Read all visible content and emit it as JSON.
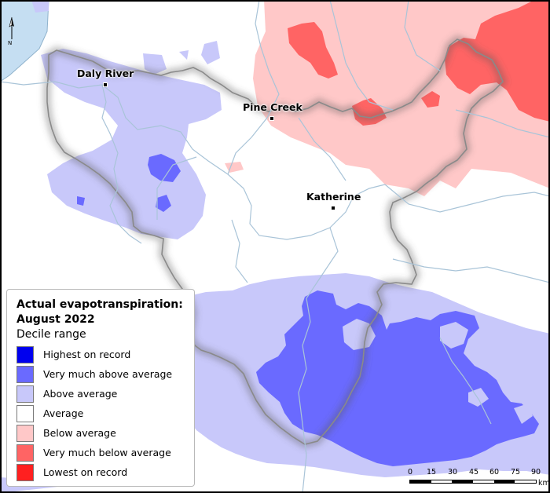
{
  "legend": {
    "title_line1": "Actual evapotranspiration:",
    "title_line2": "August 2022",
    "subtitle": "Decile range",
    "items": [
      {
        "label": "Highest on record",
        "color": "#0000ee"
      },
      {
        "label": "Very much above average",
        "color": "#6a6aff"
      },
      {
        "label": "Above average",
        "color": "#c8c8fa"
      },
      {
        "label": "Average",
        "color": "#ffffff"
      },
      {
        "label": "Below average",
        "color": "#ffc8c8"
      },
      {
        "label": "Very much below average",
        "color": "#ff6464"
      },
      {
        "label": "Lowest on record",
        "color": "#ff2020"
      }
    ]
  },
  "towns": {
    "daly_river": "Daly River",
    "pine_creek": "Pine Creek",
    "katherine": "Katherine"
  },
  "scale_bar": {
    "ticks": [
      "0",
      "15",
      "30",
      "45",
      "60",
      "75",
      "90"
    ],
    "unit": "km"
  },
  "north_arrow": {
    "label": "N"
  },
  "colors": {
    "water": "#c5def2",
    "river": "#a9c4d8",
    "boundary": "#8a8a8a"
  }
}
